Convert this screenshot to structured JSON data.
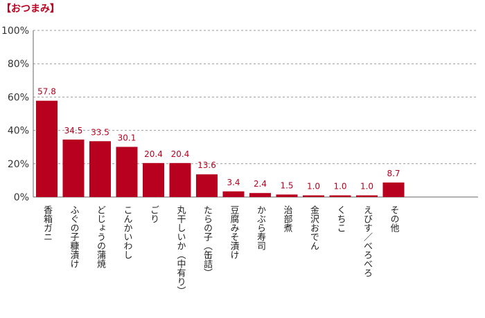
{
  "chart_data": {
    "type": "bar",
    "title": "【おつまみ】",
    "categories": [
      "香箱ガニ",
      "ふぐの子糠漬け",
      "どじょうの蒲焼",
      "こんかいわし",
      "ごり",
      "丸干しいか（中有り）",
      "たらの子（缶詰）",
      "豆腐みそ漬け",
      "かぶら寿司",
      "治部煮",
      "金沢おでん",
      "くちこ",
      "えびす／べろべろ",
      "その他"
    ],
    "values": [
      57.8,
      34.5,
      33.5,
      30.1,
      20.4,
      20.4,
      13.6,
      3.4,
      2.4,
      1.5,
      1.0,
      1.0,
      1.0,
      8.7
    ],
    "value_labels": [
      "57.8",
      "34.5",
      "33.5",
      "30.1",
      "20.4",
      "20.4",
      "13.6",
      "3.4",
      "2.4",
      "1.5",
      "1.0",
      "1.0",
      "1.0",
      "8.7"
    ],
    "yticks": [
      "0%",
      "20%",
      "40%",
      "60%",
      "80%",
      "100%"
    ],
    "ylim": [
      0,
      100
    ],
    "grid": true,
    "colors": {
      "bar": "#b8001f",
      "label": "#b8001f",
      "grid": "#999999",
      "axis": "#666666"
    }
  }
}
